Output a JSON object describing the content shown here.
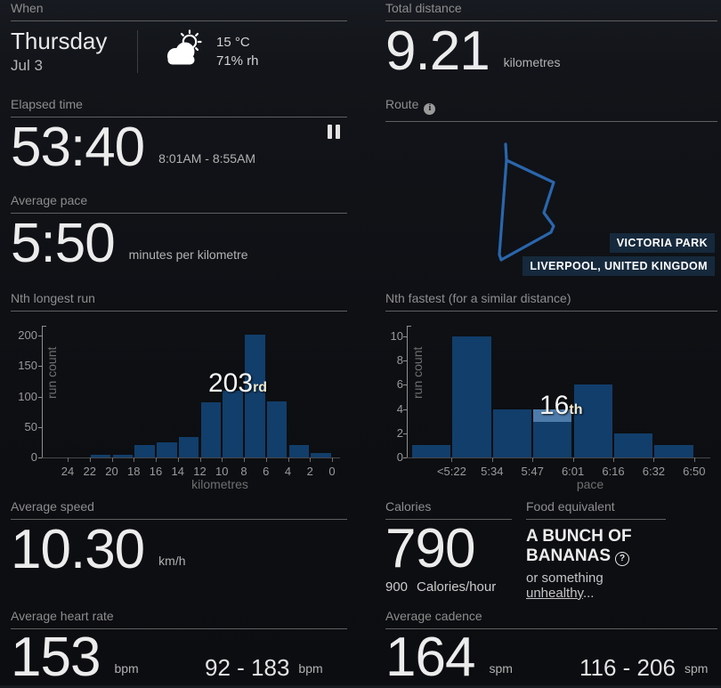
{
  "colors": {
    "chart_bar": "#123e6b",
    "chart_highlight": "#4d7cab",
    "route_line": "#2a66ad",
    "route_label_bg": "#16293c"
  },
  "icons": {
    "weather": "sun-behind-cloud-icon",
    "pause": "pause-icon",
    "route_info": "info-icon",
    "food_help": "question-icon"
  },
  "when": {
    "title": "When",
    "day": "Thursday",
    "date": "Jul 3",
    "temperature": "15 °C",
    "humidity": "71% rh"
  },
  "total_distance": {
    "title": "Total distance",
    "value": "9.21",
    "unit": "kilometres"
  },
  "elapsed_time": {
    "title": "Elapsed time",
    "value": "53:40",
    "time_range": "8:01AM - 8:55AM"
  },
  "route": {
    "title": "Route",
    "labels": [
      "VICTORIA PARK",
      "LIVERPOOL, UNITED KINGDOM"
    ]
  },
  "average_pace": {
    "title": "Average pace",
    "value": "5:50",
    "unit": "minutes per kilometre"
  },
  "average_speed": {
    "title": "Average speed",
    "value": "10.30",
    "unit": "km/h"
  },
  "calories": {
    "title": "Calories",
    "value": "790",
    "rate_value": "900",
    "rate_unit": "Calories/hour"
  },
  "food_equivalent": {
    "title": "Food equivalent",
    "name": "A BUNCH OF BANANAS",
    "alt_prefix": "or something ",
    "alt_link": "unhealthy",
    "alt_ellipsis": "..."
  },
  "average_heart_rate": {
    "title": "Average heart rate",
    "value": "153",
    "unit": "bpm",
    "range": "92 - 183",
    "range_unit": "bpm"
  },
  "average_cadence": {
    "title": "Average cadence",
    "value": "164",
    "unit": "spm",
    "range": "116 - 206",
    "range_unit": "spm"
  },
  "chart_data": [
    {
      "id": "longest",
      "type": "bar",
      "title": "Nth longest run",
      "ylabel": "run count",
      "xlabel": "kilometres",
      "yticks": [
        0,
        50,
        100,
        150,
        200
      ],
      "ylim": [
        0,
        216
      ],
      "tick_mode": "boundaries",
      "xticklabels": [
        "24",
        "22",
        "20",
        "18",
        "16",
        "14",
        "12",
        "10",
        "8",
        "6",
        "4",
        "2",
        "0"
      ],
      "values": [
        0,
        5,
        5,
        20,
        25,
        34,
        90,
        110,
        202,
        92,
        20,
        7
      ],
      "annotation": {
        "text": "203",
        "sup": "rd",
        "bar_index": 7
      }
    },
    {
      "id": "fastest",
      "type": "bar",
      "title": "Nth fastest (for a similar distance)",
      "ylabel": "run count",
      "xlabel": "pace",
      "yticks": [
        0,
        2,
        4,
        6,
        8,
        10
      ],
      "ylim": [
        0,
        10.9
      ],
      "tick_mode": "bar-right",
      "xticklabels": [
        "<5:22",
        "5:34",
        "5:47",
        "6:01",
        "6:16",
        "6:32",
        "6:50"
      ],
      "values": [
        1,
        10,
        4,
        4,
        6,
        2,
        1
      ],
      "highlight": {
        "bar_index": 3,
        "from": 3,
        "to": 4
      },
      "annotation": {
        "text": "16",
        "sup": "th",
        "bar_index": 3
      }
    }
  ]
}
